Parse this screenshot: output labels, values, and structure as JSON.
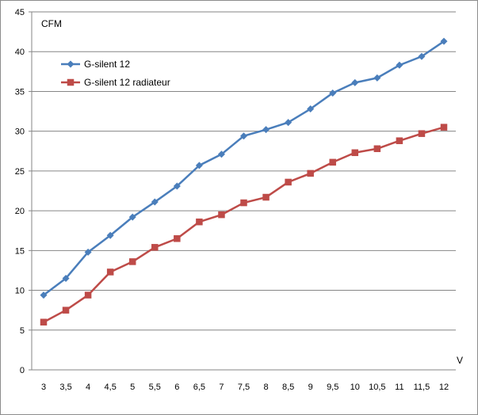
{
  "chart_data": {
    "type": "line",
    "title": "",
    "ylabel": "CFM",
    "xlabel": "V",
    "ylim": [
      0,
      45
    ],
    "yticks": [
      0,
      5,
      10,
      15,
      20,
      25,
      30,
      35,
      40,
      45
    ],
    "grid": "horizontal",
    "legend_position": "top-left",
    "categories": [
      "3",
      "3,5",
      "4",
      "4,5",
      "5",
      "5,5",
      "6",
      "6,5",
      "7",
      "7,5",
      "8",
      "8,5",
      "9",
      "9,5",
      "10",
      "10,5",
      "11",
      "11,5",
      "12"
    ],
    "series": [
      {
        "name": "G-silent 12",
        "color": "#4a7ebb",
        "marker": "diamond",
        "values": [
          9.4,
          11.5,
          14.8,
          16.9,
          19.2,
          21.1,
          23.1,
          25.7,
          27.1,
          29.4,
          30.2,
          31.1,
          32.8,
          34.8,
          36.1,
          36.7,
          38.3,
          39.4,
          41.3
        ]
      },
      {
        "name": "G-silent 12 radiateur",
        "color": "#be4b48",
        "marker": "square",
        "values": [
          6.0,
          7.5,
          9.4,
          12.3,
          13.6,
          15.4,
          16.5,
          18.6,
          19.5,
          21.0,
          21.7,
          23.6,
          24.7,
          26.1,
          27.3,
          27.8,
          28.8,
          29.7,
          30.5
        ]
      }
    ]
  }
}
